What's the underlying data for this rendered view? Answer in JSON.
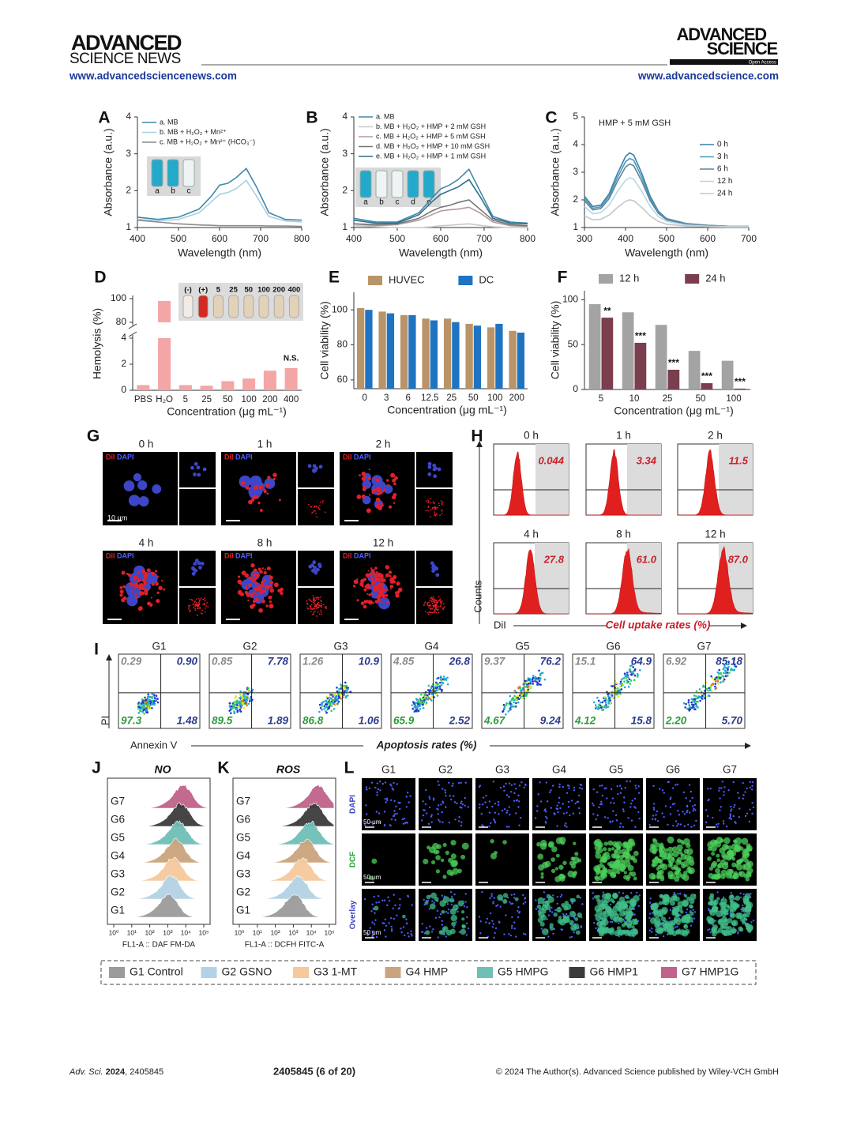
{
  "header": {
    "brand_left_1": "ADVANCED",
    "brand_left_2": "SCIENCE NEWS",
    "url_left": "www.advancedsciencenews.com",
    "brand_right_1": "ADVANCED",
    "brand_right_2": "SCIENCE",
    "open_access": "Open Access",
    "url_right": "www.advancedscience.com"
  },
  "panels": {
    "A": {
      "letter": "A",
      "type": "line",
      "xlabel": "Wavelength (nm)",
      "ylabel": "Absorbance (a.u.)",
      "xlim": [
        400,
        800
      ],
      "ylim": [
        1,
        4
      ],
      "xticks": [
        400,
        500,
        600,
        700,
        800
      ],
      "yticks": [
        1,
        2,
        3,
        4
      ],
      "legend": "top-left",
      "inset_labels": [
        "a",
        "b",
        "c"
      ],
      "x": [
        400,
        450,
        500,
        550,
        580,
        600,
        620,
        640,
        665,
        690,
        720,
        760,
        800
      ],
      "series": [
        {
          "name": "a. MB",
          "color": "#3f88a8",
          "values": [
            1.28,
            1.22,
            1.28,
            1.5,
            1.85,
            2.15,
            2.2,
            2.35,
            2.6,
            2.1,
            1.4,
            1.22,
            1.2
          ]
        },
        {
          "name": "b. MB + H₂O₂ + Mn²⁺",
          "color": "#a9cfe0",
          "values": [
            1.22,
            1.18,
            1.22,
            1.4,
            1.7,
            1.9,
            1.95,
            2.05,
            2.28,
            1.85,
            1.3,
            1.18,
            1.15
          ]
        },
        {
          "name": "c. MB + H₂O₂ + Mn²⁺ (HCO₃⁻)",
          "color": "#8c8c8c",
          "values": [
            1.2,
            1.15,
            1.1,
            1.07,
            1.06,
            1.05,
            1.05,
            1.05,
            1.05,
            1.05,
            1.04,
            1.04,
            1.03
          ]
        }
      ]
    },
    "B": {
      "letter": "B",
      "type": "line",
      "xlabel": "Wavelength (nm)",
      "ylabel": "Absorbance (a.u.)",
      "xlim": [
        400,
        800
      ],
      "ylim": [
        1,
        4
      ],
      "xticks": [
        400,
        500,
        600,
        700,
        800
      ],
      "yticks": [
        1,
        2,
        3,
        4
      ],
      "legend": "top-left",
      "inset_labels": [
        "a",
        "b",
        "c",
        "d",
        "e"
      ],
      "x": [
        400,
        450,
        500,
        550,
        580,
        600,
        620,
        640,
        665,
        690,
        720,
        760,
        800
      ],
      "series": [
        {
          "name": "a. MB",
          "color": "#3f88a8",
          "values": [
            1.25,
            1.15,
            1.15,
            1.4,
            1.8,
            2.05,
            2.15,
            2.3,
            2.58,
            2.0,
            1.3,
            1.15,
            1.12
          ]
        },
        {
          "name": "b. MB + H₂O₂ + HMP + 2 mM GSH",
          "color": "#c9c9c9",
          "values": [
            1.05,
            1.02,
            1.0,
            1.0,
            1.02,
            1.05,
            1.06,
            1.08,
            1.1,
            1.06,
            1.02,
            1.0,
            1.0
          ]
        },
        {
          "name": "c. MB + H₂O₂ + HMP + 5 mM GSH",
          "color": "#b59a9a",
          "values": [
            1.1,
            1.05,
            1.08,
            1.2,
            1.35,
            1.45,
            1.48,
            1.5,
            1.55,
            1.4,
            1.15,
            1.05,
            1.03
          ]
        },
        {
          "name": "d. MB + H₂O₂ + HMP + 10 mM GSH",
          "color": "#777777",
          "values": [
            1.1,
            1.08,
            1.1,
            1.25,
            1.45,
            1.55,
            1.6,
            1.68,
            1.75,
            1.5,
            1.2,
            1.08,
            1.05
          ]
        },
        {
          "name": "e. MB + H₂O₂ + HMP + 1 mM GSH",
          "color": "#2f6f8f",
          "values": [
            1.2,
            1.12,
            1.12,
            1.35,
            1.7,
            1.9,
            2.0,
            2.1,
            2.3,
            1.85,
            1.25,
            1.12,
            1.1
          ]
        }
      ]
    },
    "C": {
      "letter": "C",
      "type": "line",
      "xlabel": "Wavelength (nm)",
      "ylabel": "Absorbance (a.u.)",
      "xlim": [
        300,
        700
      ],
      "ylim": [
        1,
        5
      ],
      "xticks": [
        300,
        400,
        500,
        600,
        700
      ],
      "yticks": [
        1,
        2,
        3,
        4,
        5
      ],
      "legend": "right",
      "annotation": "HMP + 5 mM GSH",
      "x": [
        300,
        320,
        340,
        360,
        380,
        400,
        410,
        420,
        440,
        460,
        480,
        500,
        550,
        600,
        650,
        700
      ],
      "series": [
        {
          "name": "0 h",
          "color": "#3a7fa8",
          "values": [
            2.13,
            1.76,
            1.81,
            2.22,
            2.94,
            3.57,
            3.7,
            3.62,
            2.94,
            2.13,
            1.59,
            1.32,
            1.14,
            1.08,
            1.05,
            1.05
          ]
        },
        {
          "name": "3 h",
          "color": "#4d9ac0",
          "values": [
            2.05,
            1.7,
            1.75,
            2.13,
            2.8,
            3.38,
            3.5,
            3.43,
            2.8,
            2.05,
            1.55,
            1.3,
            1.13,
            1.08,
            1.05,
            1.05
          ]
        },
        {
          "name": "6 h",
          "color": "#5f8596",
          "values": [
            1.97,
            1.64,
            1.69,
            2.04,
            2.66,
            3.19,
            3.3,
            3.23,
            2.66,
            1.97,
            1.51,
            1.28,
            1.12,
            1.07,
            1.05,
            1.05
          ]
        },
        {
          "name": "12 h",
          "color": "#b6d7e7",
          "values": [
            1.76,
            1.5,
            1.54,
            1.81,
            2.3,
            2.71,
            2.8,
            2.75,
            2.3,
            1.76,
            1.4,
            1.22,
            1.09,
            1.05,
            1.04,
            1.04
          ]
        },
        {
          "name": "24 h",
          "color": "#c6c6c6",
          "values": [
            1.42,
            1.28,
            1.3,
            1.45,
            1.72,
            1.95,
            2.0,
            1.97,
            1.72,
            1.42,
            1.22,
            1.12,
            1.05,
            1.03,
            1.02,
            1.02
          ]
        }
      ]
    },
    "D": {
      "letter": "D",
      "type": "broken-bar",
      "xlabel": "Concentration (μg mL⁻¹)",
      "ylabel": "Hemolysis (%)",
      "ylim": [
        0,
        100
      ],
      "ybreak": [
        4,
        80
      ],
      "yticks": [
        0,
        2,
        4,
        80,
        100
      ],
      "color": "#f4a6a6",
      "annotation": "N.S.",
      "categories": [
        "PBS",
        "H₂O",
        "5",
        "25",
        "50",
        "100",
        "200",
        "400"
      ],
      "values": [
        0.4,
        98,
        0.4,
        0.35,
        0.7,
        0.9,
        1.5,
        1.7
      ],
      "inset_labels": [
        "(-)",
        "(+)",
        "5",
        "25",
        "50",
        "100",
        "200",
        "400"
      ]
    },
    "E": {
      "letter": "E",
      "type": "grouped-bar",
      "xlabel": "Concentration (μg mL⁻¹)",
      "ylabel": "Cell viability (%)",
      "ylim": [
        55,
        110
      ],
      "yticks": [
        60,
        80,
        100
      ],
      "categories": [
        "0",
        "3",
        "6",
        "12.5",
        "25",
        "50",
        "100",
        "200"
      ],
      "series": [
        {
          "name": "HUVEC",
          "color": "#b99468",
          "values": [
            101,
            99,
            97,
            95,
            95,
            92,
            90,
            88
          ]
        },
        {
          "name": "DC",
          "color": "#1f74c2",
          "values": [
            100,
            98,
            97,
            94,
            93,
            91,
            92,
            87
          ]
        }
      ]
    },
    "F": {
      "letter": "F",
      "type": "grouped-bar",
      "xlabel": "Concentration (μg mL⁻¹)",
      "ylabel": "Cell viability (%)",
      "ylim": [
        0,
        110
      ],
      "yticks": [
        0,
        50,
        100
      ],
      "categories": [
        "5",
        "10",
        "25",
        "50",
        "100"
      ],
      "series": [
        {
          "name": "12 h",
          "color": "#a3a3a3",
          "values": [
            95,
            86,
            72,
            43,
            32
          ]
        },
        {
          "name": "24 h",
          "color": "#7a3e4e",
          "values": [
            80,
            52,
            22,
            7,
            1
          ]
        }
      ],
      "annotations": [
        "**",
        "***",
        "***",
        "***",
        "***"
      ]
    },
    "G": {
      "letter": "G",
      "type": "microscopy",
      "times": [
        "0 h",
        "1 h",
        "2 h",
        "4 h",
        "8 h",
        "12 h"
      ],
      "stain_1": "DiI",
      "stain_2": "DAPI",
      "scale": "10 μm"
    },
    "H": {
      "letter": "H",
      "type": "flow-histogram",
      "times": [
        "0 h",
        "1 h",
        "2 h",
        "4 h",
        "8 h",
        "12 h"
      ],
      "rates": [
        "0.044",
        "3.34",
        "11.5",
        "27.8",
        "61.0",
        "87.0"
      ],
      "ylabel": "Counts",
      "xlabel": "DiI",
      "axis_title": "Cell uptake rates (%)"
    },
    "I": {
      "letter": "I",
      "type": "flow-scatter",
      "groups": [
        "G1",
        "G2",
        "G3",
        "G4",
        "G5",
        "G6",
        "G7"
      ],
      "ylabel": "PI",
      "xlabel": "Annexin V",
      "axis_title": "Apoptosis rates (%)",
      "quadrants": [
        {
          "ul": "0.29",
          "ur": "0.90",
          "ll": "97.3",
          "lr": "1.48"
        },
        {
          "ul": "0.85",
          "ur": "7.78",
          "ll": "89.5",
          "lr": "1.89"
        },
        {
          "ul": "1.26",
          "ur": "10.9",
          "ll": "86.8",
          "lr": "1.06"
        },
        {
          "ul": "4.85",
          "ur": "26.8",
          "ll": "65.9",
          "lr": "2.52"
        },
        {
          "ul": "9.37",
          "ur": "76.2",
          "ll": "4.67",
          "lr": "9.24"
        },
        {
          "ul": "15.1",
          "ur": "64.9",
          "ll": "4.12",
          "lr": "15.8"
        },
        {
          "ul": "6.92",
          "ur": "85.18",
          "ll": "2.20",
          "lr": "5.70"
        }
      ]
    },
    "J": {
      "letter": "J",
      "type": "ridgeline",
      "title": "NO",
      "xlabel": "FL1-A :: DAF FM-DA",
      "groups": [
        "G7",
        "G6",
        "G5",
        "G4",
        "G3",
        "G2",
        "G1"
      ],
      "xticks": [
        "10⁰",
        "10¹",
        "10²",
        "10³",
        "10⁴",
        "10⁵"
      ]
    },
    "K": {
      "letter": "K",
      "type": "ridgeline",
      "title": "ROS",
      "xlabel": "FL1-A :: DCFH FITC-A",
      "groups": [
        "G7",
        "G6",
        "G5",
        "G4",
        "G3",
        "G2",
        "G1"
      ],
      "xticks": [
        "10⁰",
        "10¹",
        "10²",
        "10³",
        "10⁴",
        "10⁵"
      ]
    },
    "L": {
      "letter": "L",
      "type": "image-grid",
      "columns": [
        "G1",
        "G2",
        "G3",
        "G4",
        "G5",
        "G6",
        "G7"
      ],
      "rows": [
        "DAPI",
        "DCF",
        "Overlay"
      ],
      "scale": "50 μm"
    }
  },
  "legend": [
    {
      "label": "G1 Control",
      "color": "#9b9b9b"
    },
    {
      "label": "G2 GSNO",
      "color": "#b3d2e6"
    },
    {
      "label": "G3 1-MT",
      "color": "#f6c89c"
    },
    {
      "label": "G4 HMP",
      "color": "#c9a47c"
    },
    {
      "label": "G5 HMPG",
      "color": "#6fbfb6"
    },
    {
      "label": "G6 HMP1",
      "color": "#3b3b3b"
    },
    {
      "label": "G7 HMP1G",
      "color": "#c0628a"
    }
  ],
  "footer": {
    "journal": "Adv. Sci.",
    "year": "2024",
    "article": ", 2405845",
    "page": "2405845 (6 of 20)",
    "copyright": "© 2024 The Author(s). Advanced Science published by Wiley-VCH GmbH"
  }
}
